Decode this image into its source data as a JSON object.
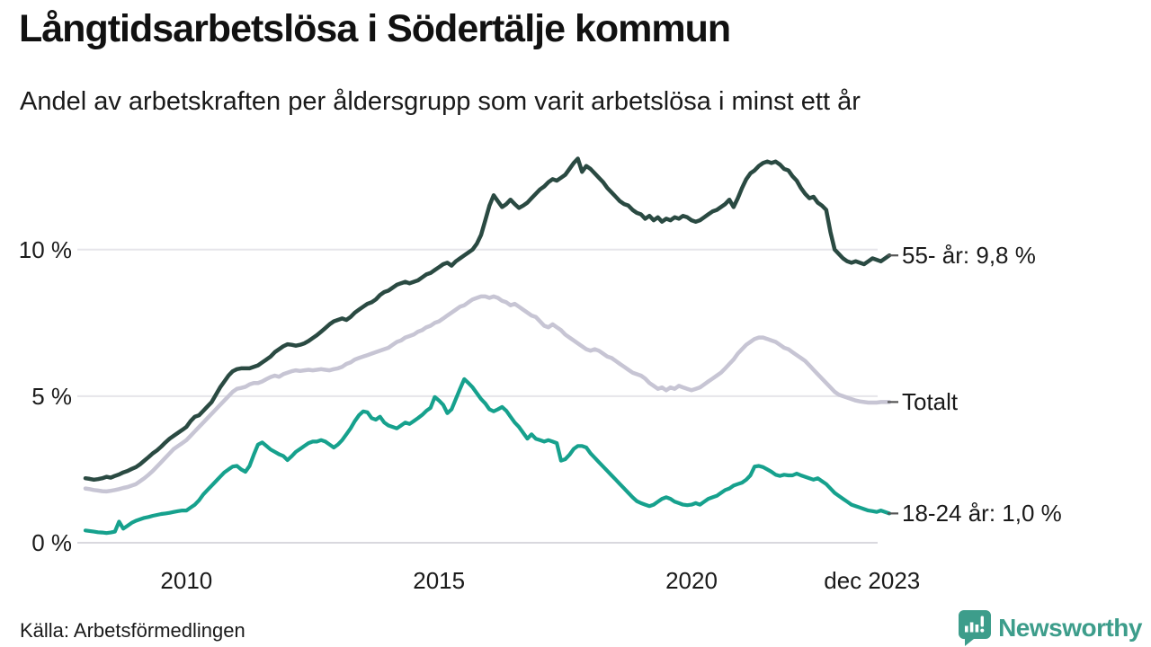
{
  "title": "Långtidsarbetslösa i Södertälje kommun",
  "subtitle": "Andel av arbetskraften per åldersgrupp som varit arbetslösa i minst ett år",
  "source": "Källa: Arbetsförmedlingen",
  "branding": {
    "name": "Newsworthy",
    "color": "#3d9d8b",
    "icon": "bar-chart-speech-bubble"
  },
  "chart_data": {
    "type": "line",
    "frequency": "monthly",
    "x_start": "2008-01",
    "x_end": "2023-12",
    "ylim": [
      0,
      13.8
    ],
    "grid": "horizontal",
    "legend_position": "right-end-labels",
    "grid_color": "#e6e5ea",
    "zero_line_color": "#d9d8de",
    "end_tick_color": "#555555",
    "y_ticks": [
      {
        "value": 0,
        "label": "0 %"
      },
      {
        "value": 5,
        "label": "5 %"
      },
      {
        "value": 10,
        "label": "10 %"
      }
    ],
    "x_ticks": [
      {
        "month_index": 24,
        "label": "2010"
      },
      {
        "month_index": 84,
        "label": "2015"
      },
      {
        "month_index": 144,
        "label": "2020"
      },
      {
        "month_index": 191,
        "label": "dec 2023",
        "align": "end"
      }
    ],
    "series": [
      {
        "name": "Totalt",
        "end_label": "Totalt",
        "end_value": 4.8,
        "color": "#c7c5d4",
        "stroke_width": 4.5,
        "values": [
          1.85,
          1.83,
          1.8,
          1.78,
          1.76,
          1.75,
          1.77,
          1.8,
          1.83,
          1.87,
          1.9,
          1.95,
          2.0,
          2.1,
          2.2,
          2.32,
          2.45,
          2.6,
          2.75,
          2.9,
          3.05,
          3.2,
          3.3,
          3.4,
          3.5,
          3.65,
          3.8,
          3.95,
          4.1,
          4.25,
          4.4,
          4.55,
          4.7,
          4.85,
          5.0,
          5.15,
          5.25,
          5.28,
          5.32,
          5.4,
          5.45,
          5.45,
          5.5,
          5.58,
          5.65,
          5.7,
          5.66,
          5.75,
          5.8,
          5.85,
          5.88,
          5.86,
          5.88,
          5.9,
          5.88,
          5.9,
          5.92,
          5.9,
          5.88,
          5.92,
          5.95,
          6.0,
          6.1,
          6.15,
          6.25,
          6.3,
          6.35,
          6.4,
          6.45,
          6.5,
          6.55,
          6.6,
          6.65,
          6.75,
          6.85,
          6.9,
          7.0,
          7.05,
          7.1,
          7.2,
          7.25,
          7.35,
          7.4,
          7.5,
          7.55,
          7.65,
          7.75,
          7.85,
          7.95,
          8.05,
          8.1,
          8.2,
          8.3,
          8.35,
          8.4,
          8.4,
          8.35,
          8.4,
          8.35,
          8.25,
          8.2,
          8.1,
          8.15,
          8.05,
          7.95,
          7.85,
          7.75,
          7.7,
          7.55,
          7.4,
          7.35,
          7.45,
          7.35,
          7.25,
          7.1,
          7.0,
          6.9,
          6.8,
          6.7,
          6.6,
          6.55,
          6.6,
          6.55,
          6.45,
          6.35,
          6.3,
          6.2,
          6.1,
          6.0,
          5.9,
          5.8,
          5.75,
          5.7,
          5.6,
          5.45,
          5.35,
          5.25,
          5.3,
          5.2,
          5.3,
          5.25,
          5.35,
          5.3,
          5.25,
          5.2,
          5.25,
          5.3,
          5.4,
          5.5,
          5.6,
          5.7,
          5.8,
          5.95,
          6.1,
          6.25,
          6.45,
          6.6,
          6.75,
          6.85,
          6.95,
          7.0,
          7.0,
          6.95,
          6.9,
          6.85,
          6.75,
          6.65,
          6.6,
          6.5,
          6.4,
          6.3,
          6.2,
          6.05,
          5.9,
          5.75,
          5.6,
          5.45,
          5.3,
          5.15,
          5.05,
          5.0,
          4.95,
          4.9,
          4.85,
          4.82,
          4.8,
          4.78,
          4.78,
          4.78,
          4.8,
          4.8,
          4.8
        ]
      },
      {
        "name": "18-24 år",
        "end_label": "18-24 år: 1,0 %",
        "end_value": 1.0,
        "color": "#16a18d",
        "stroke_width": 4.2,
        "values": [
          0.42,
          0.4,
          0.38,
          0.36,
          0.35,
          0.33,
          0.35,
          0.38,
          0.72,
          0.48,
          0.58,
          0.68,
          0.75,
          0.8,
          0.85,
          0.88,
          0.92,
          0.95,
          0.98,
          1.0,
          1.02,
          1.05,
          1.08,
          1.1,
          1.1,
          1.2,
          1.3,
          1.45,
          1.65,
          1.8,
          1.95,
          2.1,
          2.25,
          2.4,
          2.5,
          2.6,
          2.62,
          2.5,
          2.42,
          2.62,
          3.0,
          3.35,
          3.42,
          3.3,
          3.18,
          3.1,
          3.02,
          2.96,
          2.82,
          2.95,
          3.1,
          3.2,
          3.3,
          3.4,
          3.45,
          3.45,
          3.5,
          3.45,
          3.35,
          3.25,
          3.35,
          3.5,
          3.7,
          3.9,
          4.15,
          4.35,
          4.48,
          4.45,
          4.25,
          4.2,
          4.3,
          4.1,
          4.0,
          3.95,
          3.9,
          4.0,
          4.1,
          4.05,
          4.15,
          4.25,
          4.36,
          4.5,
          4.6,
          4.97,
          4.85,
          4.7,
          4.42,
          4.55,
          4.9,
          5.25,
          5.58,
          5.45,
          5.3,
          5.1,
          4.9,
          4.75,
          4.55,
          4.48,
          4.55,
          4.63,
          4.5,
          4.3,
          4.1,
          3.95,
          3.75,
          3.55,
          3.7,
          3.55,
          3.5,
          3.45,
          3.5,
          3.45,
          3.4,
          2.8,
          2.85,
          3.0,
          3.2,
          3.3,
          3.3,
          3.25,
          3.05,
          2.9,
          2.75,
          2.6,
          2.45,
          2.3,
          2.15,
          2.0,
          1.85,
          1.7,
          1.55,
          1.42,
          1.35,
          1.3,
          1.25,
          1.3,
          1.4,
          1.5,
          1.55,
          1.5,
          1.4,
          1.35,
          1.3,
          1.28,
          1.3,
          1.35,
          1.3,
          1.4,
          1.5,
          1.55,
          1.6,
          1.7,
          1.8,
          1.85,
          1.95,
          2.0,
          2.05,
          2.15,
          2.3,
          2.6,
          2.62,
          2.58,
          2.5,
          2.42,
          2.32,
          2.28,
          2.32,
          2.3,
          2.3,
          2.36,
          2.3,
          2.25,
          2.2,
          2.15,
          2.2,
          2.1,
          2.0,
          1.85,
          1.7,
          1.6,
          1.5,
          1.4,
          1.3,
          1.25,
          1.2,
          1.15,
          1.1,
          1.08,
          1.05,
          1.1,
          1.05,
          1.0
        ]
      },
      {
        "name": "55- år",
        "end_label": "55- år: 9,8 %",
        "end_value": 9.8,
        "color": "#2a4a42",
        "stroke_width": 4.5,
        "values": [
          2.2,
          2.18,
          2.15,
          2.17,
          2.2,
          2.25,
          2.22,
          2.28,
          2.33,
          2.4,
          2.45,
          2.52,
          2.58,
          2.68,
          2.8,
          2.92,
          3.05,
          3.15,
          3.28,
          3.42,
          3.55,
          3.65,
          3.75,
          3.85,
          3.95,
          4.15,
          4.3,
          4.35,
          4.5,
          4.65,
          4.8,
          5.05,
          5.3,
          5.5,
          5.7,
          5.85,
          5.92,
          5.95,
          5.95,
          5.95,
          6.0,
          6.05,
          6.15,
          6.25,
          6.35,
          6.5,
          6.6,
          6.7,
          6.77,
          6.75,
          6.72,
          6.75,
          6.8,
          6.88,
          6.98,
          7.08,
          7.2,
          7.32,
          7.45,
          7.55,
          7.6,
          7.65,
          7.6,
          7.7,
          7.85,
          7.95,
          8.05,
          8.15,
          8.2,
          8.3,
          8.45,
          8.55,
          8.6,
          8.7,
          8.8,
          8.85,
          8.9,
          8.85,
          8.9,
          8.95,
          9.05,
          9.15,
          9.2,
          9.3,
          9.4,
          9.5,
          9.55,
          9.45,
          9.6,
          9.7,
          9.8,
          9.9,
          10.0,
          10.2,
          10.5,
          11.0,
          11.5,
          11.85,
          11.65,
          11.45,
          11.55,
          11.7,
          11.55,
          11.42,
          11.5,
          11.6,
          11.75,
          11.9,
          12.05,
          12.15,
          12.3,
          12.4,
          12.35,
          12.45,
          12.55,
          12.75,
          12.95,
          13.1,
          12.65,
          12.85,
          12.75,
          12.6,
          12.45,
          12.3,
          12.1,
          11.95,
          11.8,
          11.65,
          11.55,
          11.5,
          11.35,
          11.25,
          11.2,
          11.05,
          11.15,
          11.0,
          11.1,
          10.95,
          11.05,
          11.0,
          11.1,
          11.05,
          11.15,
          11.1,
          11.0,
          10.95,
          11.0,
          11.1,
          11.2,
          11.3,
          11.35,
          11.45,
          11.55,
          11.7,
          11.45,
          11.75,
          12.1,
          12.4,
          12.6,
          12.7,
          12.85,
          12.95,
          13.0,
          12.95,
          13.0,
          12.9,
          12.75,
          12.7,
          12.5,
          12.35,
          12.1,
          11.9,
          11.75,
          11.8,
          11.6,
          11.5,
          11.35,
          10.6,
          10.0,
          9.85,
          9.7,
          9.6,
          9.55,
          9.6,
          9.55,
          9.5,
          9.6,
          9.7,
          9.65,
          9.6,
          9.7,
          9.8
        ]
      }
    ]
  }
}
